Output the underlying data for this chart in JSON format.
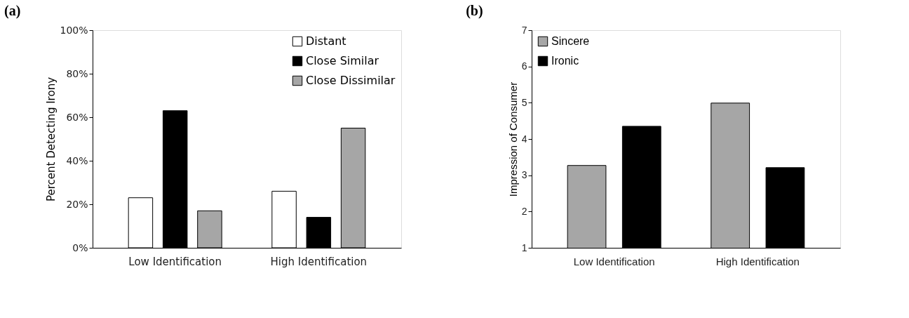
{
  "chart_data": [
    {
      "type": "bar",
      "title": "(a)",
      "ylabel": "Percent Detecting Irony",
      "categories": [
        "Low Identification",
        "High Identification"
      ],
      "series": [
        {
          "name": "Distant",
          "color": "#ffffff",
          "values": [
            23,
            26
          ]
        },
        {
          "name": "Close Similar",
          "color": "#000000",
          "values": [
            63,
            14
          ]
        },
        {
          "name": "Close Dissimilar",
          "color": "#a6a6a6",
          "values": [
            17,
            55
          ]
        }
      ],
      "ylim": [
        0,
        100
      ],
      "yticks": [
        {
          "value": 0,
          "label": "0%"
        },
        {
          "value": 20,
          "label": "20%"
        },
        {
          "value": 40,
          "label": "40%"
        },
        {
          "value": 60,
          "label": "60%"
        },
        {
          "value": 80,
          "label": "80%"
        },
        {
          "value": 100,
          "label": "100%"
        }
      ],
      "grid": false,
      "legend": "top right"
    },
    {
      "type": "bar",
      "title": "(b)",
      "ylabel": "Impression of Consumer",
      "categories": [
        "Low Identification",
        "High Identification"
      ],
      "series": [
        {
          "name": "Sincere",
          "color": "#a6a6a6",
          "values": [
            3.27,
            4.99
          ]
        },
        {
          "name": "Ironic",
          "color": "#000000",
          "values": [
            4.35,
            3.21
          ]
        }
      ],
      "ylim": [
        1,
        7
      ],
      "yticks": [
        1,
        2,
        3,
        4,
        5,
        6,
        7
      ],
      "grid": false,
      "legend": "top left"
    }
  ]
}
